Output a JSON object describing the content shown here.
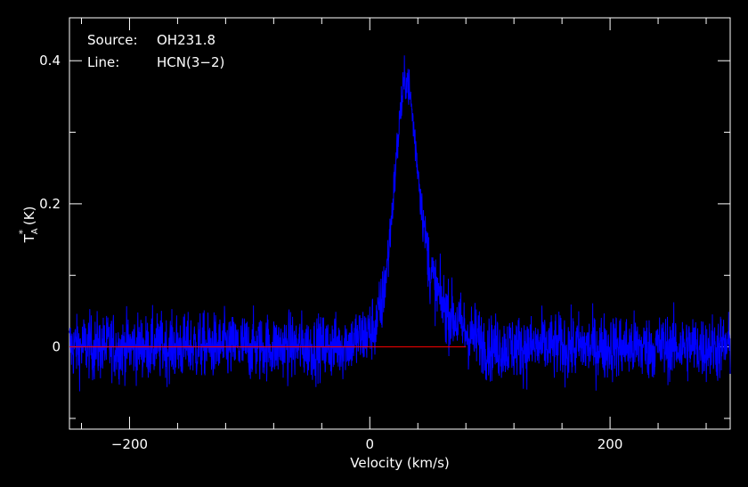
{
  "chart_data": {
    "type": "line",
    "xlabel": "Velocity (km/s)",
    "ylabel": "T",
    "ylabel_sup": "*",
    "ylabel_sub": "A",
    "ylabel_unit": " (K)",
    "xlim": [
      -250,
      300
    ],
    "ylim": [
      -0.115,
      0.46
    ],
    "x_ticks": [
      {
        "value": -200,
        "label": "−200"
      },
      {
        "value": 0,
        "label": "0"
      },
      {
        "value": 200,
        "label": "200"
      }
    ],
    "y_ticks": [
      {
        "value": 0,
        "label": "0"
      },
      {
        "value": 0.2,
        "label": "0.2"
      },
      {
        "value": 0.4,
        "label": "0.4"
      }
    ],
    "annotations": [
      {
        "key": "Source:",
        "value": "OH231.8"
      },
      {
        "key": "Line:",
        "value": "HCN(3−2)"
      }
    ],
    "baseline": {
      "value": 0,
      "x_range": [
        -250,
        80
      ],
      "color": "#ff0000"
    },
    "series": [
      {
        "color": "#0000ff",
        "x": [
          -250,
          -230,
          -210,
          -190,
          -170,
          -150,
          -130,
          -110,
          -90,
          -70,
          -50,
          -30,
          -10,
          0,
          5,
          10,
          15,
          20,
          25,
          28,
          30,
          32,
          35,
          40,
          45,
          50,
          55,
          60,
          70,
          80,
          90,
          100,
          120,
          140,
          160,
          180,
          200,
          220,
          240,
          260,
          280,
          300
        ],
        "y": [
          0.0,
          0.0,
          0.0,
          0.0,
          0.0,
          0.0,
          0.0,
          0.0,
          0.0,
          0.0,
          0.0,
          0.0,
          0.01,
          0.02,
          0.03,
          0.06,
          0.12,
          0.22,
          0.32,
          0.36,
          0.38,
          0.37,
          0.33,
          0.25,
          0.17,
          0.11,
          0.08,
          0.06,
          0.04,
          0.02,
          0.01,
          0.0,
          0.0,
          0.0,
          0.0,
          0.0,
          0.0,
          0.0,
          0.0,
          0.0,
          0.0,
          0.0
        ],
        "noise_rms": 0.025
      }
    ],
    "grid": false,
    "colors": {
      "background": "#000000",
      "axes": "#ffffff",
      "text": "#ffffff"
    }
  }
}
